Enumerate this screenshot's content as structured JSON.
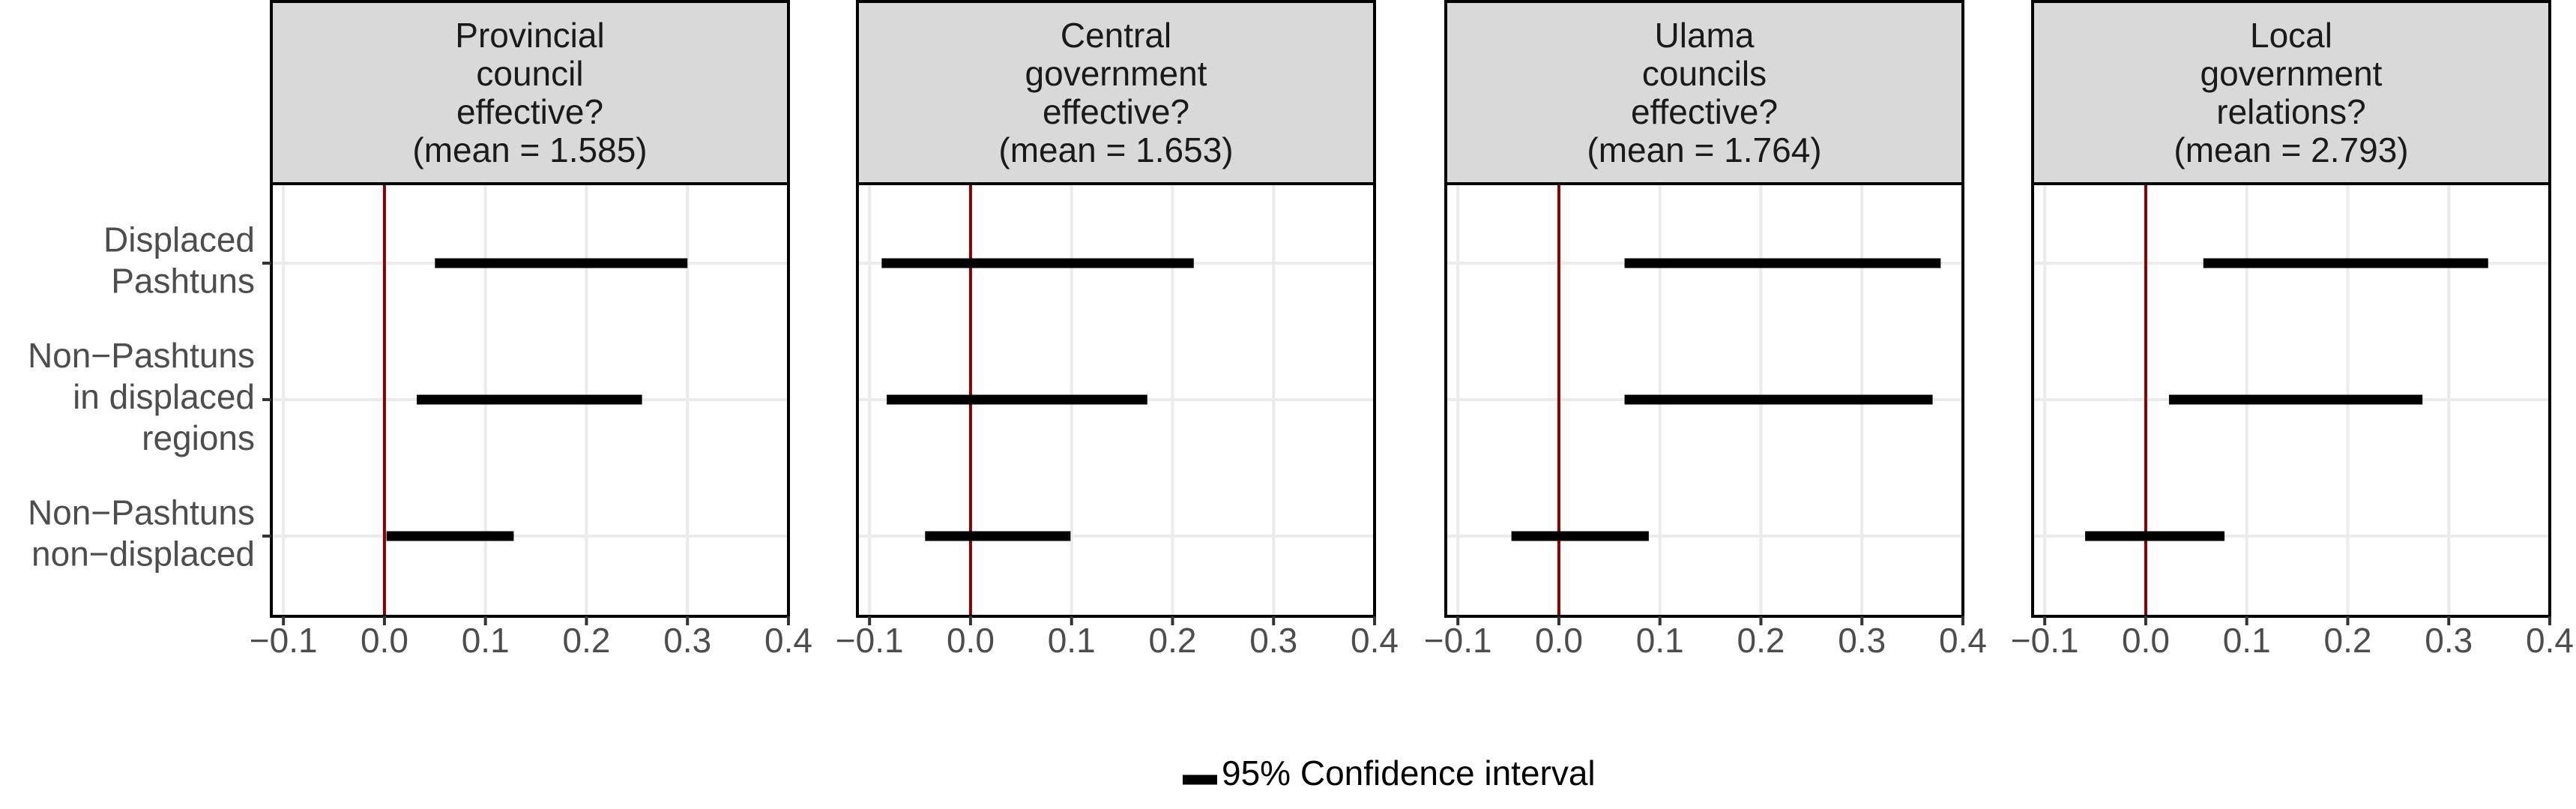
{
  "chart_data": {
    "type": "interval",
    "categories": [
      "Displaced\nPashtuns",
      "Non−Pashtuns\nin displaced\nregions",
      "Non−Pashtuns\nnon−displaced"
    ],
    "xlim": [
      -0.112,
      0.4
    ],
    "xticks": [
      {
        "value": -0.1,
        "label": "−0.1"
      },
      {
        "value": 0,
        "label": "0.0"
      },
      0.1,
      0.2,
      0.3,
      0.4
    ],
    "grid": true,
    "reference_line": 0,
    "reference_color": "#8b0000",
    "color": "#000000",
    "legend_label": "95% Confidence interval",
    "panels": [
      {
        "title": "Provincial\ncouncil\neffective?\n(mean = 1.585)",
        "low": [
          0.05,
          0.032,
          0.002
        ],
        "high": [
          0.3,
          0.255,
          0.128
        ]
      },
      {
        "title": "Central\ngovernment\neffective?\n(mean = 1.653)",
        "low": [
          -0.088,
          -0.083,
          -0.045
        ],
        "high": [
          0.221,
          0.175,
          0.099
        ]
      },
      {
        "title": "Ulama\ncouncils\neffective?\n(mean = 1.764)",
        "low": [
          0.065,
          0.065,
          -0.047
        ],
        "high": [
          0.378,
          0.37,
          0.089
        ]
      },
      {
        "title": "Local\ngovernment\nrelations?\n(mean = 2.793)",
        "low": [
          0.057,
          0.023,
          -0.06
        ],
        "high": [
          0.339,
          0.274,
          0.078
        ]
      }
    ]
  }
}
